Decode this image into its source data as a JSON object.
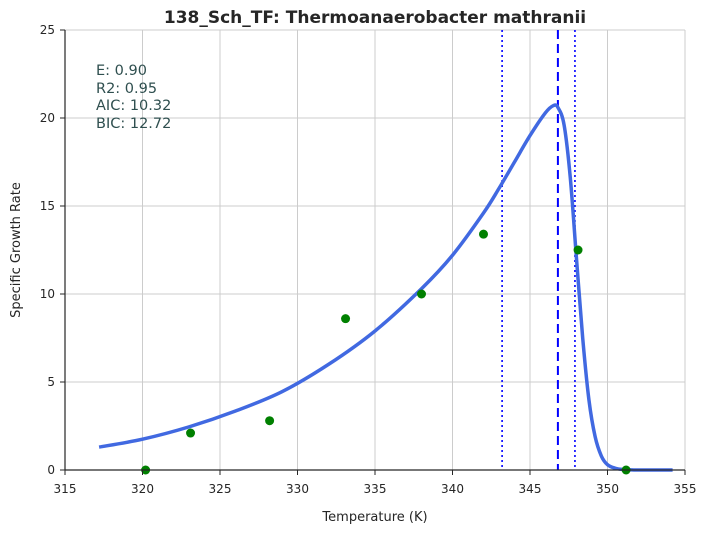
{
  "chart_data": {
    "type": "scatter",
    "title": "138_Sch_TF: Thermoanaerobacter mathranii",
    "xlabel": "Temperature (K)",
    "ylabel": "Specific Growth Rate",
    "xlim": [
      315,
      355
    ],
    "ylim": [
      0,
      25
    ],
    "xticks": [
      "315",
      "320",
      "325",
      "330",
      "335",
      "340",
      "345",
      "350",
      "355"
    ],
    "yticks": [
      "0",
      "5",
      "10",
      "15",
      "20",
      "25"
    ],
    "grid": true,
    "annotations": [
      "E:  0.90",
      "R2:  0.95",
      "AIC: 10.32",
      "BIC: 12.72"
    ],
    "series": [
      {
        "kind": "points",
        "color": "#008000",
        "x": [
          320.2,
          323.1,
          328.2,
          333.1,
          338.0,
          342.0,
          348.1,
          351.2
        ],
        "y": [
          0.0,
          2.1,
          2.8,
          8.6,
          10.0,
          13.4,
          12.5,
          0.0
        ]
      },
      {
        "kind": "fitted-curve",
        "color": "#4169e1",
        "x": [
          317.2,
          320,
          323,
          326,
          329,
          332,
          335,
          338,
          340,
          342,
          343,
          344,
          345,
          346,
          346.5,
          346.8,
          347.2,
          347.6,
          348.0,
          348.4,
          348.8,
          349.2,
          349.6,
          350.0,
          350.5,
          351.0,
          351.5,
          352,
          353,
          354.2
        ],
        "y": [
          1.3,
          1.75,
          2.45,
          3.35,
          4.45,
          6.0,
          7.9,
          10.3,
          12.2,
          14.6,
          16.0,
          17.5,
          19.0,
          20.3,
          20.7,
          20.6,
          19.6,
          16.6,
          12.0,
          7.5,
          4.0,
          1.9,
          0.8,
          0.3,
          0.1,
          0.03,
          0.01,
          0.0,
          0.0,
          0.0
        ]
      }
    ],
    "vlines": [
      {
        "x": 346.8,
        "style": "dashed",
        "color": "#0000ff"
      },
      {
        "x": 343.2,
        "style": "dotted",
        "color": "#0000ff"
      },
      {
        "x": 347.9,
        "style": "dotted",
        "color": "#0000ff"
      }
    ]
  }
}
